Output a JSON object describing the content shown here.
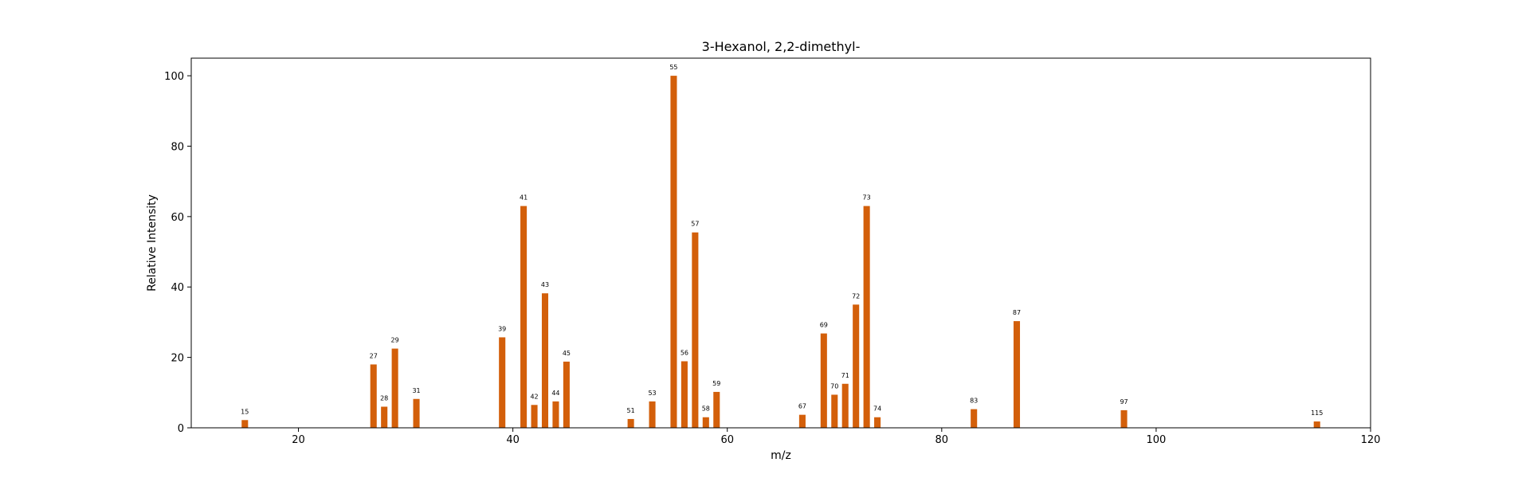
{
  "chart_data": {
    "type": "bar",
    "title": "3-Hexanol, 2,2-dimethyl-",
    "xlabel": "m/z",
    "ylabel": "Relative Intensity",
    "xlim": [
      10,
      120
    ],
    "ylim": [
      0,
      105
    ],
    "xticks": [
      20,
      40,
      60,
      80,
      100,
      120
    ],
    "yticks": [
      0,
      20,
      40,
      60,
      80,
      100
    ],
    "grid": false,
    "bar_color": "#d35f0a",
    "x": [
      15,
      27,
      28,
      29,
      31,
      39,
      41,
      42,
      43,
      44,
      45,
      51,
      53,
      55,
      56,
      57,
      58,
      59,
      67,
      69,
      70,
      71,
      72,
      73,
      74,
      83,
      87,
      97,
      115
    ],
    "values": [
      2.2,
      18,
      6,
      22.5,
      8.2,
      25.7,
      63,
      6.5,
      38.2,
      7.5,
      18.8,
      2.5,
      7.5,
      100,
      18.9,
      55.5,
      3,
      10.2,
      3.7,
      26.8,
      9.4,
      12.5,
      35,
      63,
      3,
      5.3,
      30.3,
      5,
      1.8
    ],
    "labels": [
      "15",
      "27",
      "28",
      "29",
      "31",
      "39",
      "41",
      "42",
      "43",
      "44",
      "45",
      "51",
      "53",
      "55",
      "56",
      "57",
      "58",
      "59",
      "67",
      "69",
      "70",
      "71",
      "72",
      "73",
      "74",
      "83",
      "87",
      "97",
      "115"
    ]
  }
}
